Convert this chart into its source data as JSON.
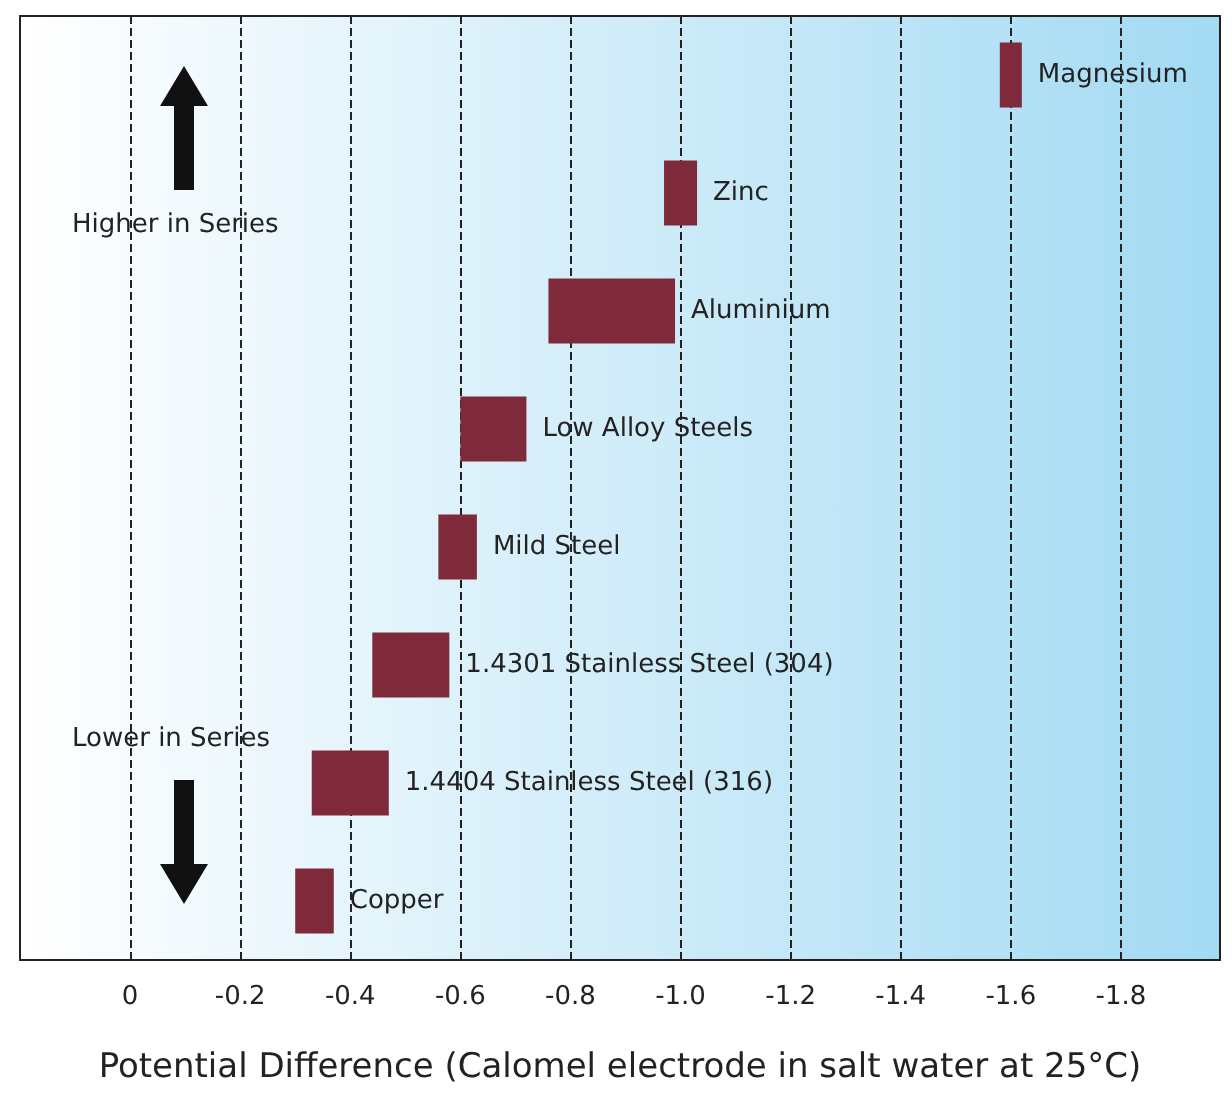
{
  "chart_data": {
    "type": "bar",
    "orientation": "horizontal",
    "xlabel": "Potential Difference (Calomel electrode in salt water at 25°C)",
    "categories": [
      "Magnesium",
      "Zinc",
      "Aluminium",
      "Low Alloy Steels",
      "Mild Steel",
      "1.4301 Stainless Steel (304)",
      "1.4404 Stainless Steel (316)",
      "Copper"
    ],
    "base": [
      -1.58,
      -0.97,
      -0.76,
      -0.6,
      -0.56,
      -0.44,
      -0.33,
      -0.3
    ],
    "values": [
      -0.04,
      -0.06,
      -0.23,
      -0.12,
      -0.07,
      -0.14,
      -0.14,
      -0.07
    ],
    "color": "#7f2a3a",
    "xlim": [
      0.2,
      -1.98
    ],
    "xticks": [
      0,
      -0.2,
      -0.4,
      -0.6,
      -0.8,
      {
        "value": -1,
        "label": "-1.0"
      },
      -1.2,
      -1.4,
      -1.6,
      -1.8
    ],
    "grid": "x",
    "annotations": [
      "Higher in Series",
      "Lower in Series"
    ]
  }
}
